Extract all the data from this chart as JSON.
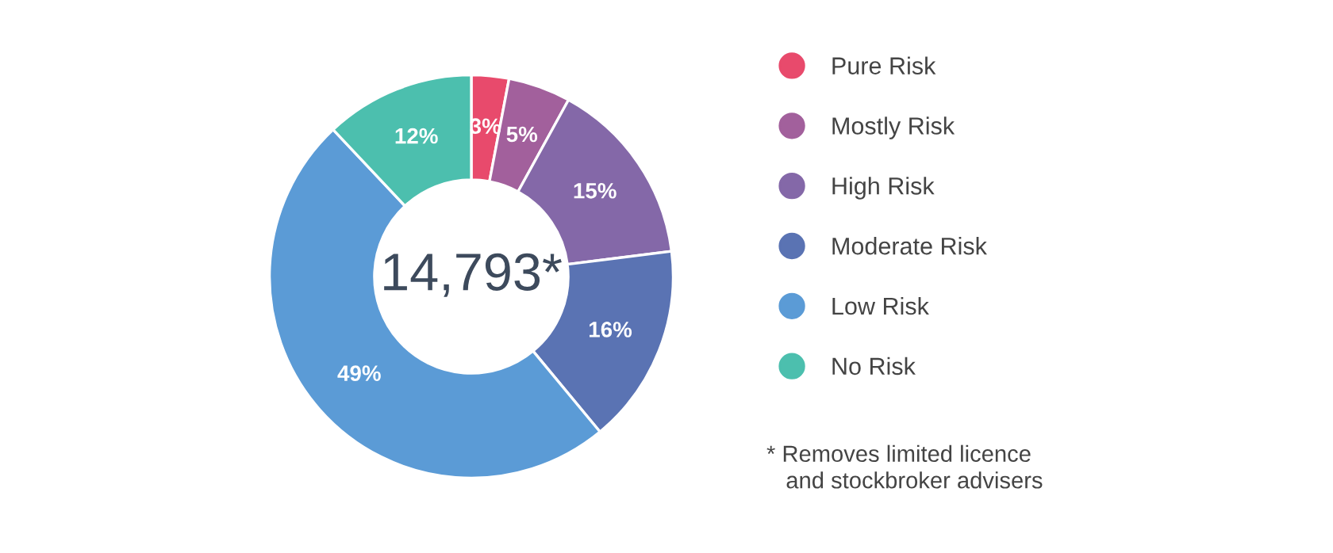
{
  "chart_data": {
    "type": "donut",
    "categories": [
      "Pure Risk",
      "Mostly Risk",
      "High Risk",
      "Moderate Risk",
      "Low Risk",
      "No Risk"
    ],
    "values": [
      3,
      5,
      15,
      16,
      49,
      12
    ],
    "value_labels": [
      "3%",
      "5%",
      "15%",
      "16%",
      "49%",
      "12%"
    ],
    "colors": [
      "#e84a6c",
      "#a2609c",
      "#8468a8",
      "#5a73b3",
      "#5b9bd6",
      "#4cbfae"
    ],
    "legend": "right",
    "annotations": [
      "14,793*",
      "* Removes limited licence\n   and stockbroker advisers"
    ]
  }
}
